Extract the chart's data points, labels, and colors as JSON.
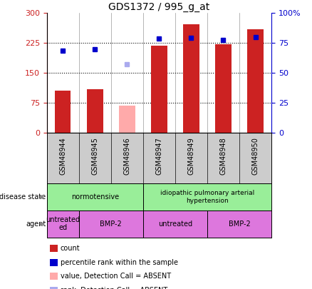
{
  "title": "GDS1372 / 995_g_at",
  "samples": [
    "GSM48944",
    "GSM48945",
    "GSM48946",
    "GSM48947",
    "GSM48949",
    "GSM48948",
    "GSM48950"
  ],
  "bar_values": [
    105,
    110,
    68,
    218,
    272,
    222,
    260
  ],
  "bar_colors": [
    "#cc2222",
    "#cc2222",
    "#ffaaaa",
    "#cc2222",
    "#cc2222",
    "#cc2222",
    "#cc2222"
  ],
  "dot_values": [
    205,
    210,
    172,
    237,
    238,
    232,
    240
  ],
  "dot_colors": [
    "#0000cc",
    "#0000cc",
    "#aaaaee",
    "#0000cc",
    "#0000cc",
    "#0000cc",
    "#0000cc"
  ],
  "ylim_left": [
    0,
    300
  ],
  "ylim_right": [
    0,
    100
  ],
  "yticks_left": [
    0,
    75,
    150,
    225,
    300
  ],
  "yticks_right": [
    0,
    25,
    50,
    75,
    100
  ],
  "left_tick_labels": [
    "0",
    "75",
    "150",
    "225",
    "300"
  ],
  "right_tick_labels": [
    "0",
    "25",
    "50",
    "75",
    "100%"
  ],
  "bar_width": 0.5,
  "xlabels_bg": "#cccccc",
  "disease_color": "#99ee99",
  "agent_color": "#dd77dd",
  "fig_bg": "#ffffff",
  "legend_items": [
    {
      "color": "#cc2222",
      "label": "count"
    },
    {
      "color": "#0000cc",
      "label": "percentile rank within the sample"
    },
    {
      "color": "#ffaaaa",
      "label": "value, Detection Call = ABSENT"
    },
    {
      "color": "#aaaaee",
      "label": "rank, Detection Call = ABSENT"
    }
  ]
}
